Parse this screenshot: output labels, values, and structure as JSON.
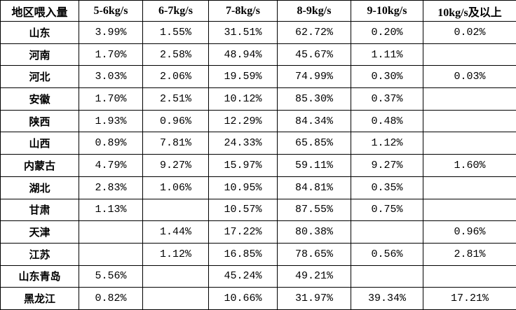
{
  "table": {
    "header": [
      "地区喂入量",
      "5-6kg/s",
      "6-7kg/s",
      "7-8kg/s",
      "8-9kg/s",
      "9-10kg/s",
      "10kg/s及以上"
    ],
    "rows": [
      [
        "山东",
        "3.99%",
        "1.55%",
        "31.51%",
        "62.72%",
        "0.20%",
        "0.02%"
      ],
      [
        "河南",
        "1.70%",
        "2.58%",
        "48.94%",
        "45.67%",
        "1.11%",
        null
      ],
      [
        "河北",
        "3.03%",
        "2.06%",
        "19.59%",
        "74.99%",
        "0.30%",
        "0.03%"
      ],
      [
        "安徽",
        "1.70%",
        "2.51%",
        "10.12%",
        "85.30%",
        "0.37%",
        null
      ],
      [
        "陕西",
        "1.93%",
        "0.96%",
        "12.29%",
        "84.34%",
        "0.48%",
        null
      ],
      [
        "山西",
        "0.89%",
        "7.81%",
        "24.33%",
        "65.85%",
        "1.12%",
        null
      ],
      [
        "内蒙古",
        "4.79%",
        "9.27%",
        "15.97%",
        "59.11%",
        "9.27%",
        "1.60%"
      ],
      [
        "湖北",
        "2.83%",
        "1.06%",
        "10.95%",
        "84.81%",
        "0.35%",
        null
      ],
      [
        "甘肃",
        "1.13%",
        null,
        "10.57%",
        "87.55%",
        "0.75%",
        null
      ],
      [
        "天津",
        null,
        "1.44%",
        "17.22%",
        "80.38%",
        null,
        "0.96%"
      ],
      [
        "江苏",
        null,
        "1.12%",
        "16.85%",
        "78.65%",
        "0.56%",
        "2.81%"
      ],
      [
        "山东青岛",
        "5.56%",
        null,
        "45.24%",
        "49.21%",
        null,
        null
      ],
      [
        "黑龙江",
        "0.82%",
        null,
        "10.66%",
        "31.97%",
        "39.34%",
        "17.21%"
      ]
    ]
  }
}
